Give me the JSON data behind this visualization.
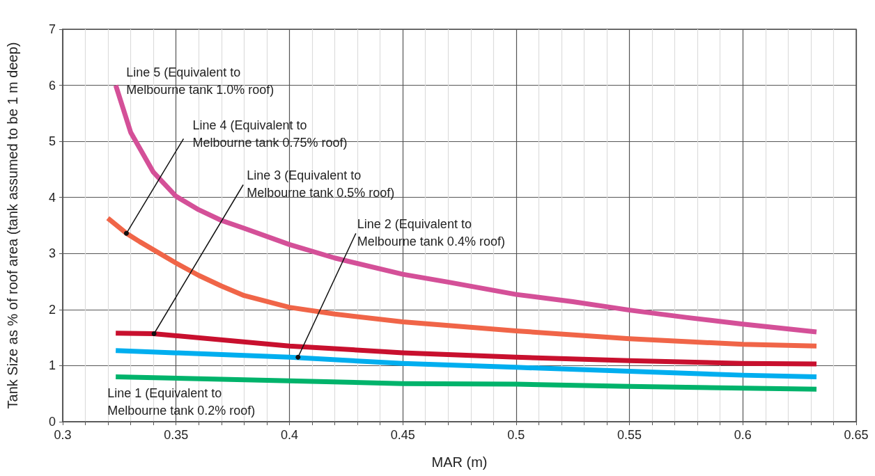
{
  "chart_data": {
    "type": "line",
    "xlabel": "MAR (m)",
    "ylabel": "Tank Size as % of roof area (tank assumed to be 1 m deep)",
    "xlim": [
      0.3,
      0.65
    ],
    "ylim": [
      0,
      7
    ],
    "xticks": [
      0.3,
      {
        "value": 0.31,
        "label": null
      },
      {
        "value": 0.32,
        "label": null
      },
      {
        "value": 0.33,
        "label": null
      },
      {
        "value": 0.34,
        "label": null
      },
      0.35,
      {
        "value": 0.36,
        "label": null
      },
      {
        "value": 0.37,
        "label": null
      },
      {
        "value": 0.38,
        "label": null
      },
      {
        "value": 0.39,
        "label": null
      },
      0.4,
      {
        "value": 0.41,
        "label": null
      },
      {
        "value": 0.42,
        "label": null
      },
      {
        "value": 0.43,
        "label": null
      },
      {
        "value": 0.44,
        "label": null
      },
      0.45,
      {
        "value": 0.46,
        "label": null
      },
      {
        "value": 0.47,
        "label": null
      },
      {
        "value": 0.48,
        "label": null
      },
      {
        "value": 0.49,
        "label": null
      },
      0.5,
      {
        "value": 0.51,
        "label": null
      },
      {
        "value": 0.52,
        "label": null
      },
      {
        "value": 0.53,
        "label": null
      },
      {
        "value": 0.54,
        "label": null
      },
      0.55,
      {
        "value": 0.56,
        "label": null
      },
      {
        "value": 0.57,
        "label": null
      },
      {
        "value": 0.58,
        "label": null
      },
      {
        "value": 0.59,
        "label": null
      },
      0.6,
      {
        "value": 0.61,
        "label": null
      },
      {
        "value": 0.62,
        "label": null
      },
      {
        "value": 0.63,
        "label": null
      },
      {
        "value": 0.64,
        "label": null
      },
      0.65
    ],
    "yticks": [
      0,
      1,
      2,
      3,
      4,
      5,
      6,
      7
    ],
    "grid": true,
    "marker": "none",
    "line_style": "solid",
    "series": [
      {
        "color": "#00b36b",
        "x": [
          0.3234,
          0.4,
          0.45,
          0.5,
          0.55,
          0.6,
          0.6325
        ],
        "values": [
          0.8,
          0.73,
          0.68,
          0.67,
          0.63,
          0.6,
          0.58
        ]
      },
      {
        "color": "#00aeef",
        "x": [
          0.3234,
          0.4,
          0.45,
          0.5,
          0.55,
          0.6,
          0.6325
        ],
        "values": [
          1.27,
          1.15,
          1.04,
          0.97,
          0.9,
          0.83,
          0.8
        ]
      },
      {
        "color": "#c8102e",
        "x": [
          0.3234,
          0.34,
          0.4,
          0.45,
          0.5,
          0.55,
          0.6,
          0.6325
        ],
        "values": [
          1.58,
          1.57,
          1.35,
          1.23,
          1.15,
          1.09,
          1.04,
          1.03
        ]
      },
      {
        "color": "#f06548",
        "x": [
          0.3199,
          0.3281,
          0.334,
          0.35,
          0.36,
          0.37,
          0.38,
          0.4,
          0.42,
          0.45,
          0.5,
          0.55,
          0.6,
          0.6325
        ],
        "values": [
          3.63,
          3.36,
          3.21,
          2.83,
          2.61,
          2.42,
          2.25,
          2.04,
          1.92,
          1.78,
          1.62,
          1.48,
          1.38,
          1.35
        ]
      },
      {
        "color": "#d45098",
        "x": [
          0.3234,
          0.33,
          0.34,
          0.35,
          0.36,
          0.37,
          0.38,
          0.4,
          0.42,
          0.45,
          0.47,
          0.5,
          0.525,
          0.55,
          0.575,
          0.6,
          0.6325
        ],
        "values": [
          6.0,
          5.16,
          4.45,
          4.02,
          3.78,
          3.59,
          3.45,
          3.16,
          2.92,
          2.63,
          2.49,
          2.27,
          2.14,
          1.99,
          1.86,
          1.74,
          1.6
        ]
      }
    ],
    "annotations": [
      {
        "text": "Line 5 (Equivalent to\nMelbourne tank 1.0% roof)",
        "x": 0.3234,
        "y": 6.0
      },
      {
        "text": "Line 4 (Equivalent to\nMelbourne tank 0.75% roof)",
        "x": 0.3281,
        "y": 3.36
      },
      {
        "text": "Line 3 (Equivalent to\nMelbourne tank 0.5% roof)",
        "x": 0.3403,
        "y": 1.57
      },
      {
        "text": "Line 2 (Equivalent to\nMelbourne tank 0.4% roof)",
        "x": 0.4038,
        "y": 1.15
      },
      {
        "text": "Line 1 (Equivalent to\nMelbourne tank 0.2% roof)",
        "x": 0.3234,
        "y": 0.8
      }
    ]
  }
}
